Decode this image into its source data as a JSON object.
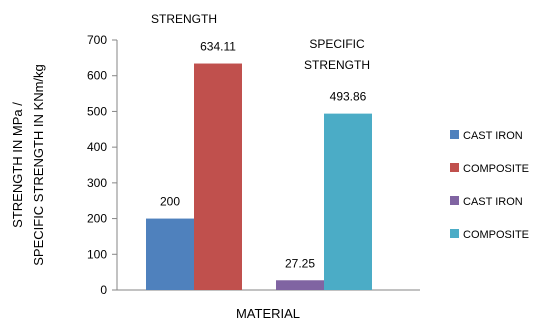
{
  "chart_data": {
    "type": "bar",
    "xlabel": "MATERIAL",
    "ylabel_lines": [
      "STRENGTH IN MPa /",
      "SPECIFIC STRENGTH IN KNm/kg"
    ],
    "ylim": [
      0,
      700
    ],
    "yticks": [
      0,
      100,
      200,
      300,
      400,
      500,
      600,
      700
    ],
    "grid": false,
    "legend_position": "right",
    "groups": [
      {
        "label_lines": [
          "STRENGTH"
        ],
        "bars": [
          {
            "name": "CAST IRON",
            "value": 200,
            "label": "200",
            "color": "#4F81BD"
          },
          {
            "name": "COMPOSITE",
            "value": 634.11,
            "label": "634.11",
            "color": "#C0504D"
          }
        ]
      },
      {
        "label_lines": [
          "SPECIFIC",
          "STRENGTH"
        ],
        "bars": [
          {
            "name": "CAST IRON",
            "value": 27.25,
            "label": "27.25",
            "color": "#8064A2"
          },
          {
            "name": "COMPOSITE",
            "value": 493.86,
            "label": "493.86",
            "color": "#4BACC6"
          }
        ]
      }
    ],
    "legend": [
      {
        "name": "CAST IRON",
        "color": "#4F81BD"
      },
      {
        "name": "COMPOSITE",
        "color": "#C0504D"
      },
      {
        "name": "CAST IRON",
        "color": "#8064A2"
      },
      {
        "name": "COMPOSITE",
        "color": "#4BACC6"
      }
    ]
  }
}
